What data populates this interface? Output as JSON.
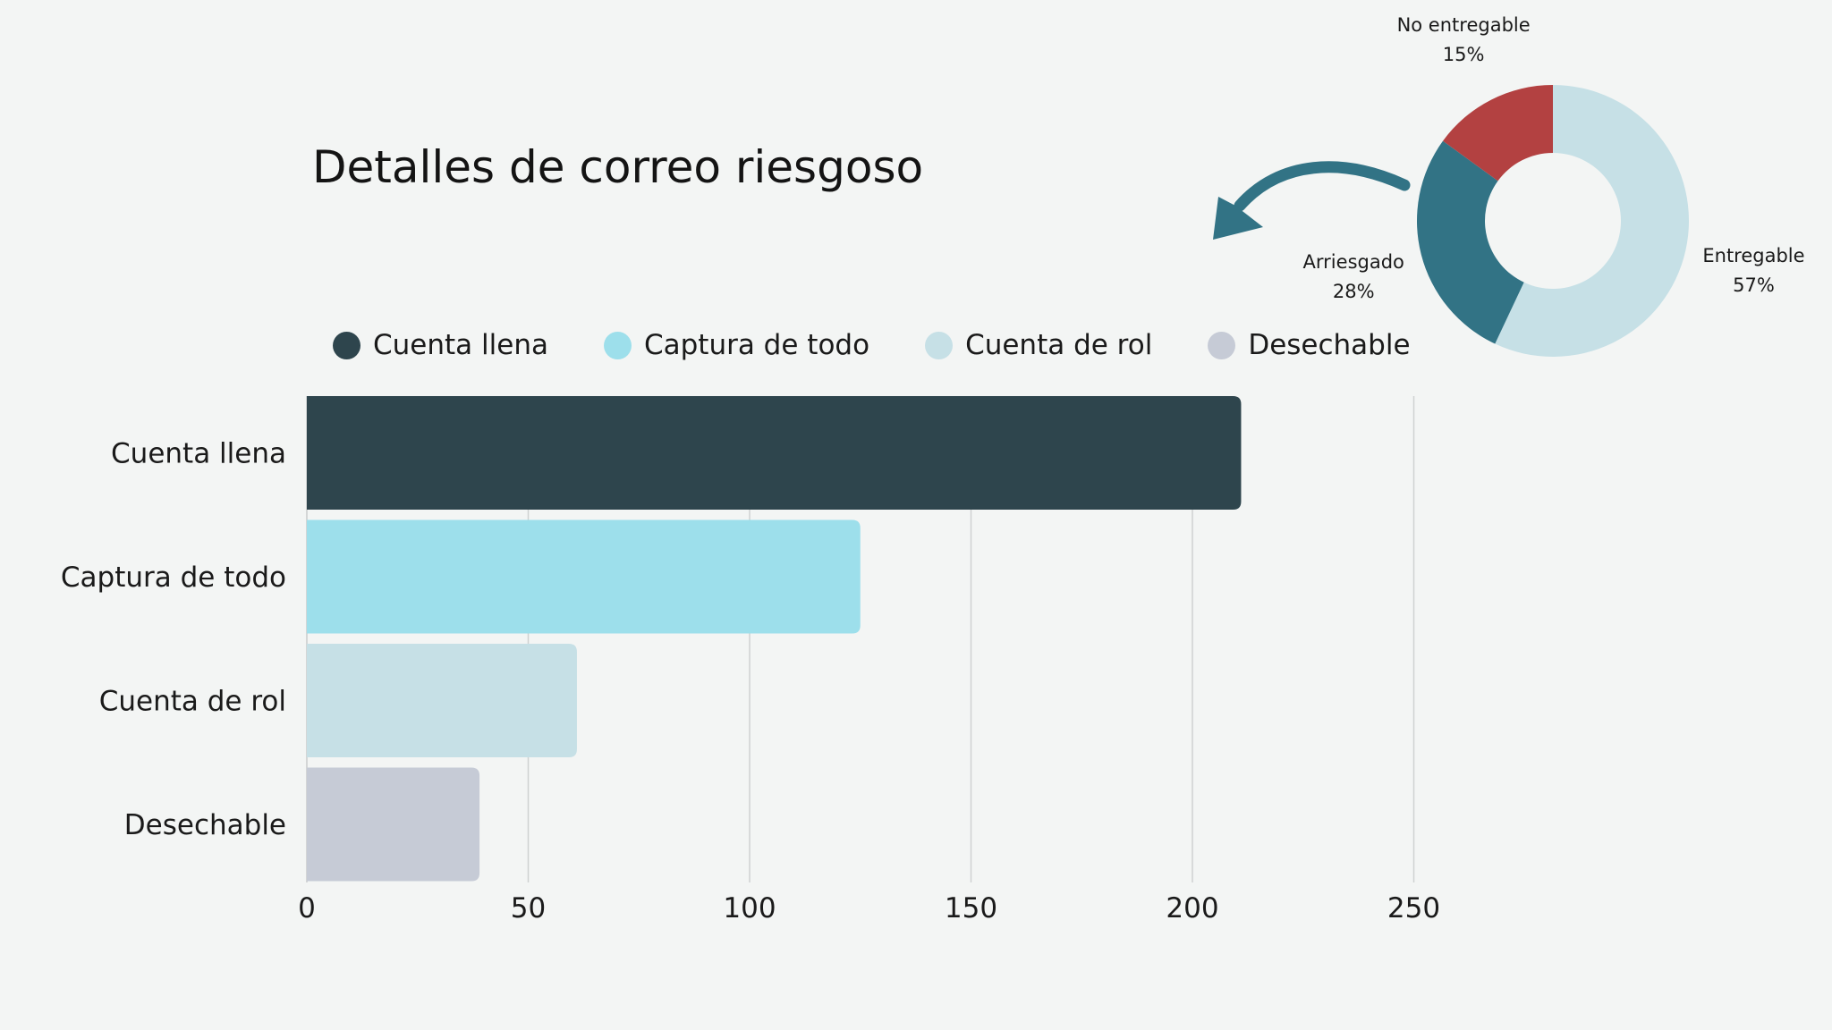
{
  "colors": {
    "background": "#f3f5f4",
    "cuenta_llena": "#2e454d",
    "captura_de_todo": "#9ddfeb",
    "cuenta_de_rol": "#c6e0e6",
    "desechable": "#c6cbd6",
    "entregable": "#c6e0e6",
    "arriesgado": "#327385",
    "no_entregable": "#b34141",
    "arrow": "#327385",
    "grid": "#cfd2d1"
  },
  "chart_data": [
    {
      "type": "bar",
      "orientation": "horizontal",
      "title": "Detalles de correo riesgoso",
      "categories": [
        "Cuenta llena",
        "Captura de todo",
        "Cuenta de rol",
        "Desechable"
      ],
      "values": [
        211,
        125,
        61,
        39
      ],
      "series_colors": [
        "#2e454d",
        "#9ddfeb",
        "#c6e0e6",
        "#c6cbd6"
      ],
      "legend": [
        "Cuenta llena",
        "Captura de todo",
        "Cuenta de rol",
        "Desechable"
      ],
      "legend_position": "top",
      "xticks": [
        "0",
        "50",
        "100",
        "150",
        "200",
        "250"
      ],
      "xlim": [
        0,
        250
      ],
      "grid": true
    },
    {
      "type": "pie",
      "style": "donut",
      "slices": [
        {
          "label": "Entregable",
          "percent_label": "57%",
          "value": 57,
          "color": "#c6e0e6"
        },
        {
          "label": "Arriesgado",
          "percent_label": "28%",
          "value": 28,
          "color": "#327385"
        },
        {
          "label": "No entregable",
          "percent_label": "15%",
          "value": 15,
          "color": "#b34141"
        }
      ]
    }
  ]
}
